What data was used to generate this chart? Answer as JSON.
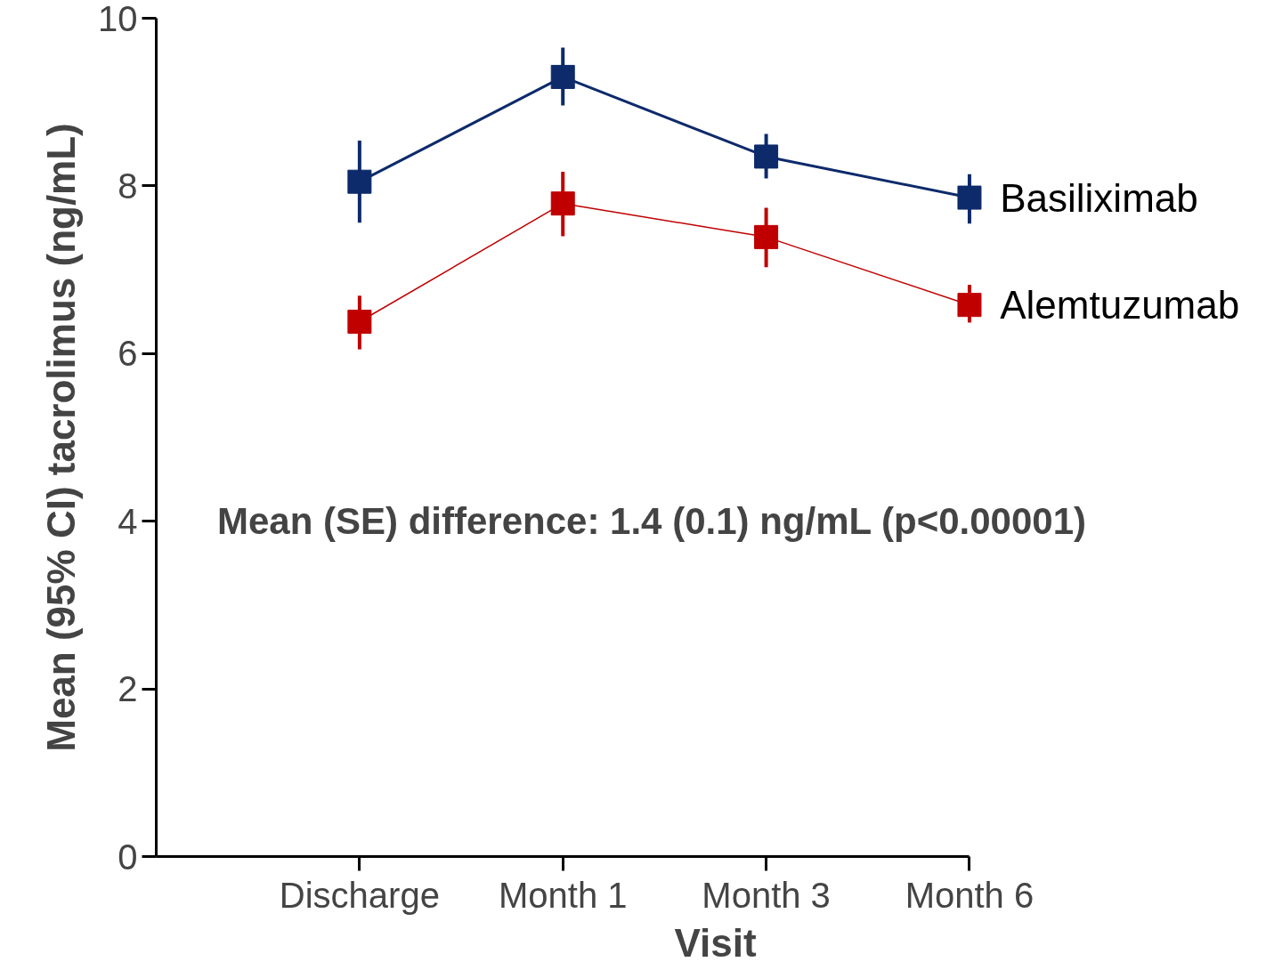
{
  "chart_data": {
    "type": "line",
    "xlabel": "Visit",
    "ylabel": "Mean (95% CI) tacrolimus (ng/mL)",
    "categories": [
      "Discharge",
      "Month 1",
      "Month 3",
      "Month 6"
    ],
    "series": [
      {
        "name": "Basiliximab",
        "color": "#0d2a6b",
        "values": [
          8.05,
          9.3,
          8.35,
          7.86
        ],
        "errors": [
          [
            7.56,
            8.54
          ],
          [
            8.96,
            9.65
          ],
          [
            8.09,
            8.62
          ],
          [
            7.55,
            8.14
          ]
        ]
      },
      {
        "name": "Alemtuzumab",
        "color": "#c00000",
        "values": [
          6.38,
          7.79,
          7.39,
          6.58
        ],
        "errors": [
          [
            6.05,
            6.69
          ],
          [
            7.4,
            8.17
          ],
          [
            7.03,
            7.74
          ],
          [
            6.37,
            6.82
          ]
        ]
      }
    ],
    "ylim": [
      0,
      10
    ],
    "yticks": [
      0,
      2,
      4,
      6,
      8,
      10
    ],
    "marker": "square",
    "line_style": "solid",
    "grid": false,
    "annotations": [
      "Mean (SE) difference: 1.4 (0.1) ng/mL (p<0.00001)"
    ]
  }
}
